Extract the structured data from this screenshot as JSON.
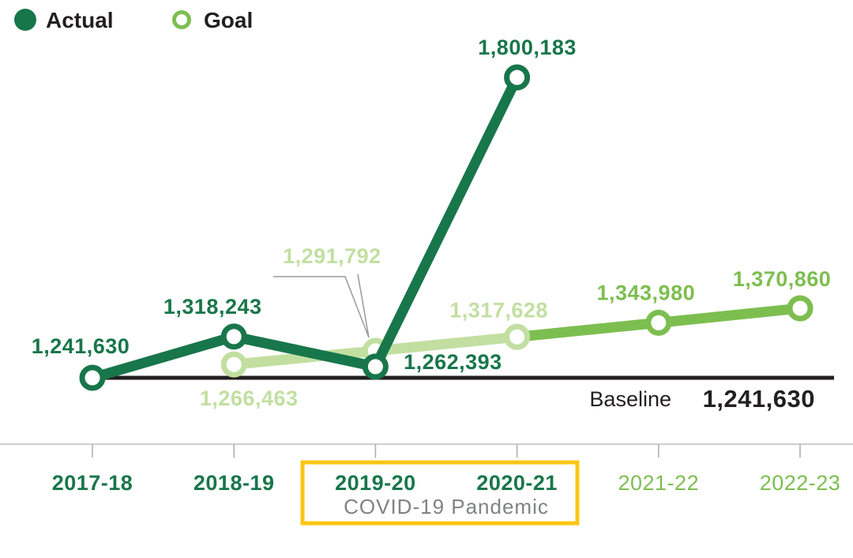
{
  "chart_data": {
    "type": "line",
    "title": "",
    "categories": [
      "2017-18",
      "2018-19",
      "2019-20",
      "2020-21",
      "2021-22",
      "2022-23"
    ],
    "series": [
      {
        "name": "Actual",
        "marker": "filled-circle",
        "values": [
          1241630,
          1318243,
          1262393,
          1800183,
          null,
          null
        ],
        "labels": [
          "1,241,630",
          "1,318,243",
          "1,262,393",
          "1,800,183",
          null,
          null
        ]
      },
      {
        "name": "Goal",
        "marker": "open-circle",
        "values": [
          null,
          1266463,
          1291792,
          1317628,
          1343980,
          1370860
        ],
        "labels": [
          null,
          "1,266,463",
          "1,291,792",
          "1,317,628",
          "1,343,980",
          "1,370,860"
        ]
      }
    ],
    "baseline": {
      "label": "Baseline",
      "value": 1241630,
      "value_label": "1,241,630"
    },
    "annotation": {
      "text": "COVID-19 Pandemic",
      "categories": [
        "2019-20",
        "2020-21"
      ]
    },
    "ylim": [
      1241630,
      1800183
    ],
    "grid": false,
    "legend_position": "top-left",
    "colors": {
      "actual": "#18764B",
      "goal": "#7DBE50",
      "goal_past": "#C2DFA1",
      "text_dark": "#231F20",
      "axis": "#CDCDCD",
      "tick": "#ABABAB",
      "annotation_text": "#808285",
      "annotation_box": "#FDC513",
      "leader": "#9A9A9A"
    }
  }
}
